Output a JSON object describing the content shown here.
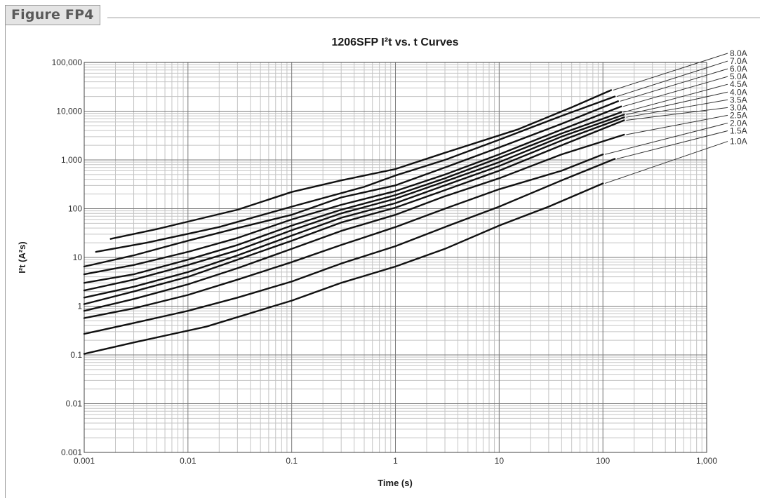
{
  "figure_label": "Figure FP4",
  "chart_data": {
    "type": "line",
    "title": "1206SFP I²t vs. t Curves",
    "xlabel": "Time (s)",
    "ylabel": "I²t (A²s)",
    "x_scale": "log",
    "y_scale": "log",
    "xlim": [
      0.001,
      1000
    ],
    "ylim": [
      0.001,
      100000
    ],
    "x_ticks": [
      {
        "value": 0.001,
        "label": "0.001"
      },
      {
        "value": 0.01,
        "label": "0.01"
      },
      {
        "value": 0.1,
        "label": "0.1"
      },
      {
        "value": 1,
        "label": "1"
      },
      {
        "value": 10,
        "label": "10"
      },
      {
        "value": 100,
        "label": "100"
      },
      {
        "value": 1000,
        "label": "1,000"
      }
    ],
    "y_ticks": [
      {
        "value": 0.001,
        "label": "0.001"
      },
      {
        "value": 0.01,
        "label": "0.01"
      },
      {
        "value": 0.1,
        "label": "0.1"
      },
      {
        "value": 1,
        "label": "1"
      },
      {
        "value": 10,
        "label": "10"
      },
      {
        "value": 100,
        "label": "100"
      },
      {
        "value": 1000,
        "label": "1,000"
      },
      {
        "value": 10000,
        "label": "10,000"
      },
      {
        "value": 100000,
        "label": "100,000"
      }
    ],
    "grid": true,
    "series": [
      {
        "name": "8.0A",
        "points": [
          [
            0.0018,
            24
          ],
          [
            0.005,
            38
          ],
          [
            0.03,
            95
          ],
          [
            0.1,
            220
          ],
          [
            0.3,
            380
          ],
          [
            1,
            650
          ],
          [
            3,
            1400
          ],
          [
            15,
            4200
          ],
          [
            50,
            12000
          ],
          [
            120,
            27000
          ]
        ]
      },
      {
        "name": "7.0A",
        "points": [
          [
            0.0013,
            13
          ],
          [
            0.004,
            20
          ],
          [
            0.02,
            42
          ],
          [
            0.1,
            110
          ],
          [
            0.5,
            280
          ],
          [
            1,
            480
          ],
          [
            3,
            1000
          ],
          [
            10,
            2600
          ],
          [
            40,
            8000
          ],
          [
            130,
            20000
          ]
        ]
      },
      {
        "name": "6.0A",
        "points": [
          [
            0.001,
            6.5
          ],
          [
            0.003,
            11
          ],
          [
            0.01,
            22
          ],
          [
            0.03,
            40
          ],
          [
            0.1,
            75
          ],
          [
            0.3,
            170
          ],
          [
            1,
            300
          ],
          [
            3,
            700
          ],
          [
            10,
            1800
          ],
          [
            40,
            5500
          ],
          [
            140,
            16000
          ]
        ]
      },
      {
        "name": "5.0A",
        "points": [
          [
            0.001,
            4.5
          ],
          [
            0.003,
            7
          ],
          [
            0.01,
            13
          ],
          [
            0.03,
            25
          ],
          [
            0.1,
            60
          ],
          [
            0.3,
            120
          ],
          [
            1,
            230
          ],
          [
            3,
            500
          ],
          [
            10,
            1300
          ],
          [
            40,
            4200
          ],
          [
            150,
            12500
          ]
        ]
      },
      {
        "name": "4.5A",
        "points": [
          [
            0.001,
            3
          ],
          [
            0.003,
            4.5
          ],
          [
            0.01,
            9
          ],
          [
            0.03,
            18
          ],
          [
            0.1,
            45
          ],
          [
            0.3,
            95
          ],
          [
            1,
            190
          ],
          [
            3,
            420
          ],
          [
            10,
            1100
          ],
          [
            40,
            3500
          ],
          [
            150,
            9500
          ]
        ]
      },
      {
        "name": "4.0A",
        "points": [
          [
            0.001,
            2.1
          ],
          [
            0.003,
            3.5
          ],
          [
            0.01,
            7
          ],
          [
            0.03,
            14
          ],
          [
            0.1,
            36
          ],
          [
            0.3,
            80
          ],
          [
            1,
            160
          ],
          [
            3,
            360
          ],
          [
            10,
            900
          ],
          [
            40,
            3000
          ],
          [
            160,
            8500
          ]
        ]
      },
      {
        "name": "3.5A",
        "points": [
          [
            0.001,
            1.5
          ],
          [
            0.003,
            2.5
          ],
          [
            0.01,
            5
          ],
          [
            0.03,
            11
          ],
          [
            0.1,
            28
          ],
          [
            0.3,
            65
          ],
          [
            1,
            130
          ],
          [
            3,
            300
          ],
          [
            10,
            750
          ],
          [
            40,
            2500
          ],
          [
            160,
            7500
          ]
        ]
      },
      {
        "name": "3.0A",
        "points": [
          [
            0.001,
            1.1
          ],
          [
            0.003,
            2
          ],
          [
            0.01,
            4
          ],
          [
            0.03,
            9
          ],
          [
            0.1,
            22
          ],
          [
            0.3,
            52
          ],
          [
            1,
            105
          ],
          [
            3,
            240
          ],
          [
            10,
            600
          ],
          [
            40,
            2000
          ],
          [
            160,
            6500
          ]
        ]
      },
      {
        "name": "2.5A",
        "points": [
          [
            0.001,
            0.8
          ],
          [
            0.003,
            1.4
          ],
          [
            0.01,
            2.8
          ],
          [
            0.03,
            6
          ],
          [
            0.1,
            15
          ],
          [
            0.3,
            35
          ],
          [
            1,
            75
          ],
          [
            3,
            180
          ],
          [
            10,
            420
          ],
          [
            40,
            1300
          ],
          [
            160,
            3300
          ]
        ]
      },
      {
        "name": "2.0A",
        "points": [
          [
            0.001,
            0.57
          ],
          [
            0.003,
            0.9
          ],
          [
            0.01,
            1.7
          ],
          [
            0.03,
            3.5
          ],
          [
            0.1,
            8
          ],
          [
            0.3,
            18
          ],
          [
            1,
            42
          ],
          [
            3,
            100
          ],
          [
            10,
            250
          ],
          [
            40,
            600
          ],
          [
            100,
            1300
          ]
        ]
      },
      {
        "name": "1.5A",
        "points": [
          [
            0.001,
            0.27
          ],
          [
            0.003,
            0.45
          ],
          [
            0.01,
            0.8
          ],
          [
            0.03,
            1.5
          ],
          [
            0.1,
            3.2
          ],
          [
            0.3,
            7.5
          ],
          [
            1,
            17
          ],
          [
            3,
            42
          ],
          [
            10,
            110
          ],
          [
            40,
            380
          ],
          [
            130,
            1050
          ]
        ]
      },
      {
        "name": "1.0A",
        "points": [
          [
            0.001,
            0.105
          ],
          [
            0.003,
            0.18
          ],
          [
            0.015,
            0.38
          ],
          [
            0.1,
            1.3
          ],
          [
            0.3,
            3
          ],
          [
            1,
            6.5
          ],
          [
            3,
            15
          ],
          [
            10,
            45
          ],
          [
            30,
            110
          ],
          [
            100,
            330
          ]
        ]
      }
    ]
  }
}
